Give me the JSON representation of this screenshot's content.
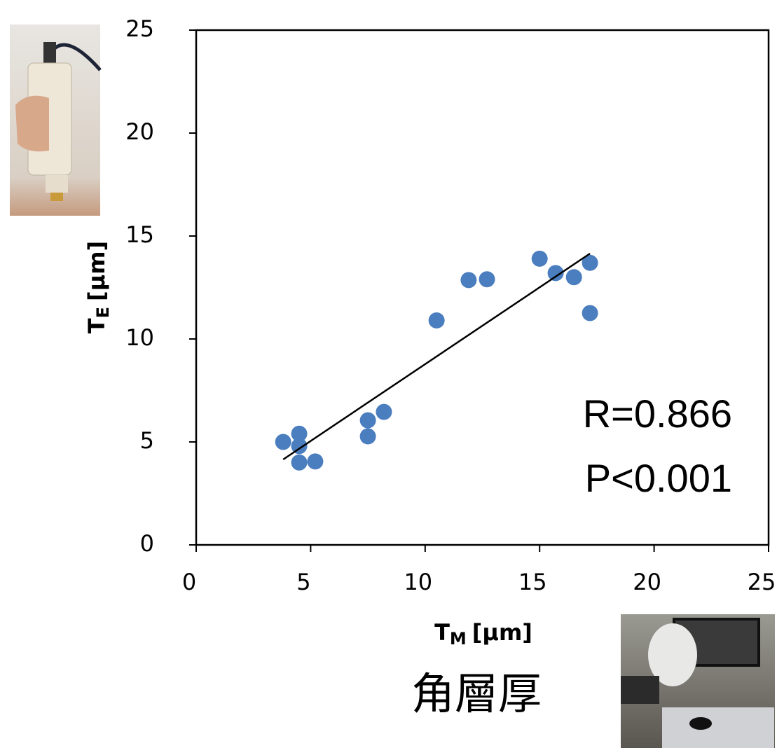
{
  "chart_data": {
    "type": "scatter",
    "x_label": {
      "main": "T",
      "sub": "M",
      "unit": "[μm]"
    },
    "y_label": {
      "main": "T",
      "sub": "E",
      "unit": "[μm]"
    },
    "series": [
      {
        "color": "#4a7ebf",
        "x": [
          3.8,
          4.5,
          4.5,
          4.5,
          5.2,
          7.5,
          7.5,
          8.2,
          10.5,
          11.9,
          12.7,
          15.0,
          15.7,
          16.5,
          17.2,
          17.2
        ],
        "values": [
          5.0,
          5.4,
          4.8,
          4.0,
          4.05,
          6.05,
          5.27,
          6.46,
          10.9,
          12.86,
          12.9,
          13.9,
          13.2,
          13.0,
          13.7,
          11.26
        ]
      }
    ],
    "trendline": {
      "x": [
        3.8,
        17.2
      ],
      "values": [
        4.15,
        14.15
      ],
      "color": "#000000"
    },
    "xlim": [
      0,
      25
    ],
    "ylim": [
      0,
      25
    ],
    "xticks": [
      0,
      5,
      10,
      15,
      20,
      25
    ],
    "yticks": [
      0,
      5,
      10,
      15,
      20,
      25
    ],
    "annotations": [
      "R=0.866",
      "P<0.001"
    ],
    "caption": "角層厚"
  }
}
